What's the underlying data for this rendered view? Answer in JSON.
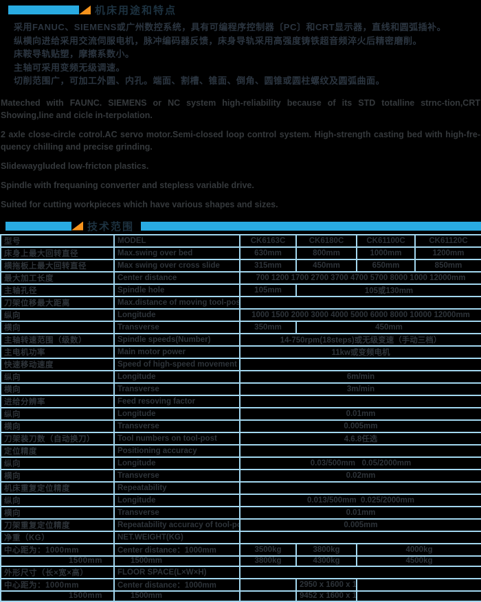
{
  "colors": {
    "accent_blue": "#29abe2",
    "accent_orange": "#f7941d",
    "line_blue": "#a3d8f0",
    "background": "#000000",
    "text_dark_gray": "#2e343a"
  },
  "section1": {
    "title": "机床用途和特点",
    "cn_lines": [
      "采用FANUC、SIEMENS或广州数控系统，具有可编程序控制器〔PC〕和CRT显示器，直线和圆弧插补。",
      "纵横向进给采用交流伺服电机，脉冲编码器反馈，床身导轨采用高强度铸铁超音频淬火后精密磨削。",
      "床鞍导轨贴塑，摩擦系数小。",
      "主轴可采用变频无级调速。",
      "切削范围广，可加工外圆、内孔。端面、割槽、锥面、倒角、圆锥或圆柱螺纹及圆弧曲面。"
    ],
    "en_paragraphs": [
      "Mateched with FAUNC. SIEMENS or NC system high-reliability because of its STD totalline strnc-tion,CRT Showing,line and cicle in-terpolation.",
      "2  axle close-circle cotrol.AC servo motor.Semi-closed loop control system. High-strength casting bed with high-fre-quency chilling and precise grinding.",
      "Slidewaygluded low-fricton plastics.",
      "Spindle with frequaning converter and stepless variable drive.",
      "Suited for cutting workpieces which have various shapes and sizes."
    ]
  },
  "section2": {
    "title": "技术范围"
  },
  "table": {
    "rows": [
      {
        "cn": "型号",
        "en": "MODEL",
        "hdr": true,
        "cells": [
          {
            "t": "CK6163C",
            "s": 1
          },
          {
            "t": "CK6180C",
            "s": 1
          },
          {
            "t": "CK61100C",
            "s": 1
          },
          {
            "t": "CK61120C",
            "s": 1
          }
        ]
      },
      {
        "cn": "床身上最大回转直径",
        "en": "Max.swing over bed",
        "cells": [
          {
            "t": "630mm",
            "s": 1
          },
          {
            "t": "800mm",
            "s": 1
          },
          {
            "t": "1000mm",
            "s": 1
          },
          {
            "t": "1200mm",
            "s": 1
          }
        ]
      },
      {
        "cn": "横拖板上最大回转直径",
        "en": "Max swing over cross slide",
        "cells": [
          {
            "t": "315mm",
            "s": 1
          },
          {
            "t": "450mm",
            "s": 1
          },
          {
            "t": "650mm",
            "s": 1
          },
          {
            "t": "850mm",
            "s": 1
          }
        ]
      },
      {
        "cn": "最大加工长度",
        "en": "Center distance",
        "cells": [
          {
            "t": "700 1200 1700 2700 3700 4700 5700 8000 1000 12000mm",
            "s": 4
          }
        ]
      },
      {
        "cn": "主轴孔径",
        "en": "Spindle hole",
        "cells": [
          {
            "t": "105mm",
            "s": 1
          },
          {
            "t": "105或130mm",
            "s": 3
          }
        ]
      },
      {
        "cn": "刀架位移最大距离",
        "en": "Max.distance of moving tool-post",
        "cells": [
          {
            "t": "",
            "s": 4
          }
        ]
      },
      {
        "cn": "纵向",
        "en": "Longitude",
        "cells": [
          {
            "t": "1000 1500 2000 3000 4000 5000 6000 8000 10000 12000mm",
            "s": 4
          }
        ]
      },
      {
        "cn": "横向",
        "en": "Transverse",
        "cells": [
          {
            "t": "350mm",
            "s": 1
          },
          {
            "t": "450mm",
            "s": 3
          }
        ]
      },
      {
        "cn": "主轴转速范围（级数）",
        "en": "Spindle speeds(Number)",
        "cells": [
          {
            "t": "14-750rpm(18steps)或无级变速（手动三档）",
            "s": 4
          }
        ]
      },
      {
        "cn": "主电机功率",
        "en": "Main motor power",
        "cells": [
          {
            "t": "11kw或变频电机",
            "s": 4
          }
        ]
      },
      {
        "cn": "快速移动速度",
        "en": "Speed of high-speed movement",
        "cells": [
          {
            "t": "",
            "s": 4
          }
        ]
      },
      {
        "cn": "纵向",
        "en": "Longitude",
        "cells": [
          {
            "t": "6m/min",
            "s": 4
          }
        ]
      },
      {
        "cn": "横向",
        "en": "Transverse",
        "cells": [
          {
            "t": "3m/min",
            "s": 4
          }
        ]
      },
      {
        "cn": "进给分辨率",
        "en": "Feed resoving factor",
        "cells": [
          {
            "t": "",
            "s": 4
          }
        ]
      },
      {
        "cn": "纵向",
        "en": "Longitude",
        "cells": [
          {
            "t": "0.01mm",
            "s": 4
          }
        ]
      },
      {
        "cn": "横向",
        "en": "Transverse",
        "cells": [
          {
            "t": "0.005mm",
            "s": 4
          }
        ]
      },
      {
        "cn": "刀架装刀数（自动换刀）",
        "en": "Tool numbers on tool-post",
        "cells": [
          {
            "t": "4.6.8任选",
            "s": 4
          }
        ]
      },
      {
        "cn": "定位精度",
        "en": "Positioning accuracy",
        "cells": [
          {
            "t": "",
            "s": 4
          }
        ]
      },
      {
        "cn": "纵向",
        "en": "Longitude",
        "cells": [
          {
            "t": "0.03/500mm   0.05/2000mm",
            "s": 4
          }
        ]
      },
      {
        "cn": "横向",
        "en": "Transverse",
        "cells": [
          {
            "t": "0.02mm",
            "s": 4
          }
        ]
      },
      {
        "cn": "机床重复定位精度",
        "en": "Repeatability",
        "cells": [
          {
            "t": "",
            "s": 4
          }
        ]
      },
      {
        "cn": "纵向",
        "en": "Longitude",
        "cells": [
          {
            "t": "0.013/500mm  0.025/2000mm",
            "s": 4
          }
        ]
      },
      {
        "cn": "横向",
        "en": "Transverse",
        "cells": [
          {
            "t": "0.01mm",
            "s": 4
          }
        ]
      },
      {
        "cn": "刀架重复定位精度",
        "en": "Repeatability accuracy of tool-post",
        "cells": [
          {
            "t": "0.005mm",
            "s": 4
          }
        ]
      },
      {
        "cn": "净重（KG）",
        "en": "NET.WEIGHT(KG)",
        "cells": [
          {
            "t": "",
            "s": 4
          }
        ]
      },
      {
        "cn": "中心距为：1000mm",
        "en": "Center distance：1000mm",
        "cells": [
          {
            "t": "3500kg",
            "s": 1
          },
          {
            "t": "3800kg",
            "s": 1
          },
          {
            "t": "4000kg",
            "s": 2
          }
        ]
      },
      {
        "cn": "1500mm",
        "en": "1500mm",
        "sub": true,
        "cells": [
          {
            "t": "3800kg",
            "s": 1
          },
          {
            "t": "4300kg",
            "s": 1
          },
          {
            "t": "4500kg",
            "s": 2
          }
        ]
      },
      {
        "cn": "外形尺寸（长×宽×高）",
        "en": "FLOOR SPACE(L×W×H)",
        "cells": [
          {
            "t": "",
            "s": 4
          }
        ]
      },
      {
        "cn": "中心距为：1000mm",
        "en": "Center distance：1000mm",
        "cells": [
          {
            "t": "",
            "s": 1
          },
          {
            "t": "2950 x 1600 x 1950",
            "s": 1
          },
          {
            "t": "",
            "s": 2
          }
        ]
      },
      {
        "cn": "1500mm",
        "en": "1500mm",
        "sub": true,
        "cells": [
          {
            "t": "",
            "s": 1
          },
          {
            "t": "9452 x 1600 x 1950",
            "s": 1
          },
          {
            "t": "",
            "s": 2
          }
        ]
      }
    ]
  }
}
